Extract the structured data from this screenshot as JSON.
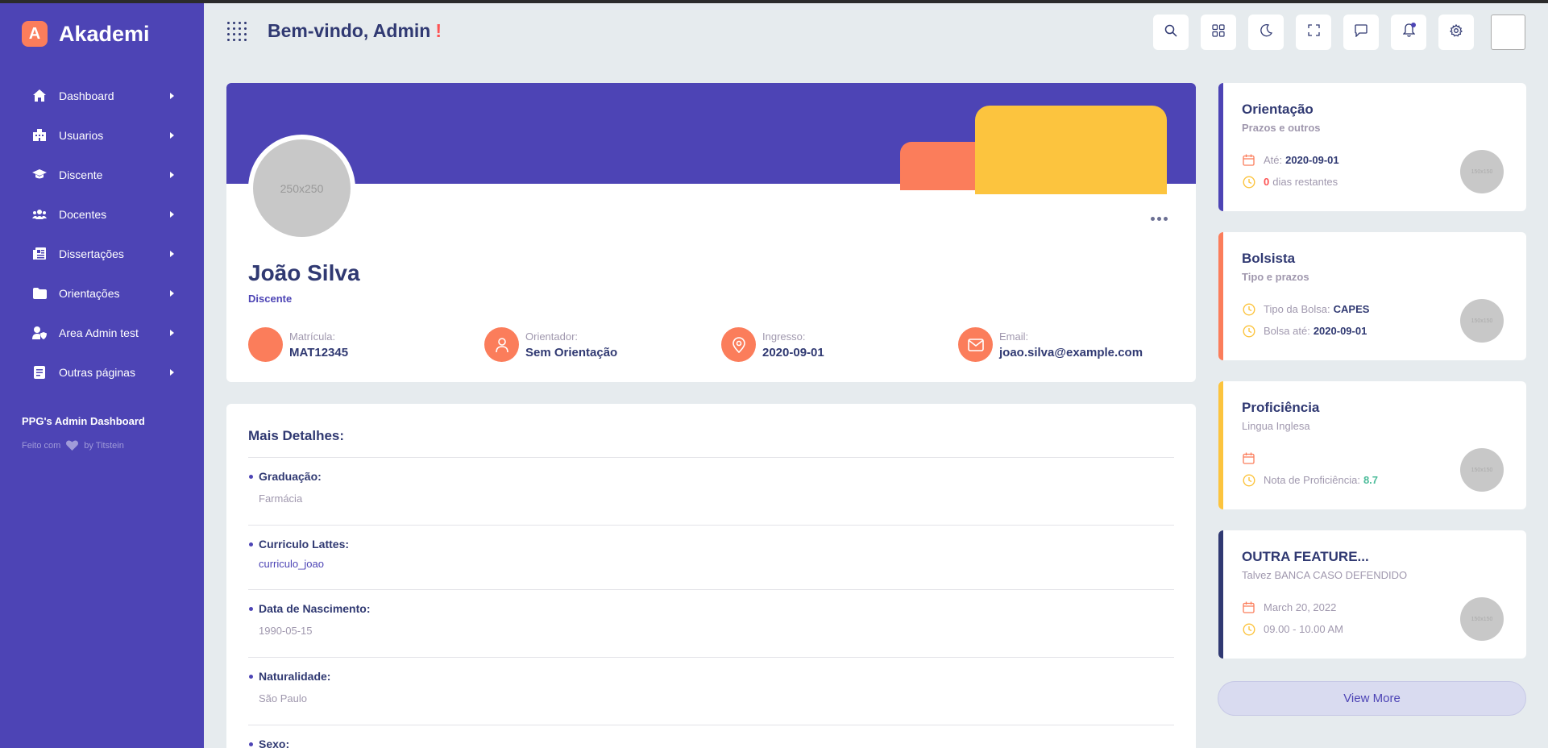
{
  "brand": {
    "logo_letter": "A",
    "name": "Akademi"
  },
  "sidebar": {
    "items": [
      {
        "label": "Dashboard",
        "icon": "home-icon"
      },
      {
        "label": "Usuarios",
        "icon": "building-icon"
      },
      {
        "label": "Discente",
        "icon": "graduation-cap-icon"
      },
      {
        "label": "Docentes",
        "icon": "users-icon"
      },
      {
        "label": "Dissertações",
        "icon": "newspaper-icon"
      },
      {
        "label": "Orientações",
        "icon": "folder-icon"
      },
      {
        "label": "Area Admin test",
        "icon": "user-shield-icon"
      },
      {
        "label": "Outras páginas",
        "icon": "document-icon"
      }
    ],
    "footer_title": "PPG's Admin Dashboard",
    "credit_prefix": "Feito com",
    "credit_suffix": "by Titstein"
  },
  "header": {
    "welcome": "Bem-vindo,",
    "user": "Admin",
    "exclamation": "!",
    "buttons": [
      "search-icon",
      "grid-icon",
      "moon-icon",
      "fullscreen-icon",
      "chat-icon",
      "bell-icon",
      "gear-icon"
    ]
  },
  "profile": {
    "avatar_text": "250x250",
    "name": "João Silva",
    "role": "Discente",
    "info": [
      {
        "label": "Matrícula:",
        "value": "MAT12345"
      },
      {
        "label": "Orientador:",
        "value": "Sem Orientação"
      },
      {
        "label": "Ingresso:",
        "value": "2020-09-01"
      },
      {
        "label": "Email:",
        "value": "joao.silva@example.com"
      }
    ]
  },
  "details": {
    "title": "Mais Detalhes:",
    "items": [
      {
        "label": "Graduação:",
        "value": "Farmácia"
      },
      {
        "label": "Curriculo Lattes:",
        "value": "curriculo_joao"
      },
      {
        "label": "Data de Nascimento:",
        "value": "1990-05-15"
      },
      {
        "label": "Naturalidade:",
        "value": "São Paulo"
      },
      {
        "label": "Sexo:",
        "value": ""
      }
    ]
  },
  "cards": [
    {
      "title": "Orientação",
      "subtitle": "Prazos e outros",
      "accent": "#4d44b5",
      "row1_prefix": "Até:",
      "row1_value": "2020-09-01",
      "row2_count": "0",
      "row2_text": "dias restantes",
      "thumb": "150x150"
    },
    {
      "title": "Bolsista",
      "subtitle": "Tipo e prazos",
      "accent": "#fb7d5b",
      "row1_prefix": "Tipo da Bolsa:",
      "row1_value": "CAPES",
      "row2_prefix": "Bolsa até:",
      "row2_value": "2020-09-01",
      "thumb": "150x150"
    },
    {
      "title": "Proficiência",
      "subtitle": "Lingua Inglesa",
      "accent": "#fcc43e",
      "row2_prefix": "Nota de Proficiência:",
      "row2_value": "8.7",
      "thumb": "150x150"
    },
    {
      "title": "OUTRA FEATURE...",
      "subtitle": "Talvez BANCA CASO DEFENDIDO",
      "accent": "#303972",
      "row1_text": "March 20, 2022",
      "row2_text": "09.00 - 10.00 AM",
      "thumb": "150x150"
    }
  ],
  "view_more": "View More",
  "colors": {
    "primary": "#4d44b5",
    "orange": "#fb7d5b",
    "yellow": "#fcc43e",
    "navy": "#303972",
    "red": "#fd5353",
    "green": "#4cbc9a"
  }
}
